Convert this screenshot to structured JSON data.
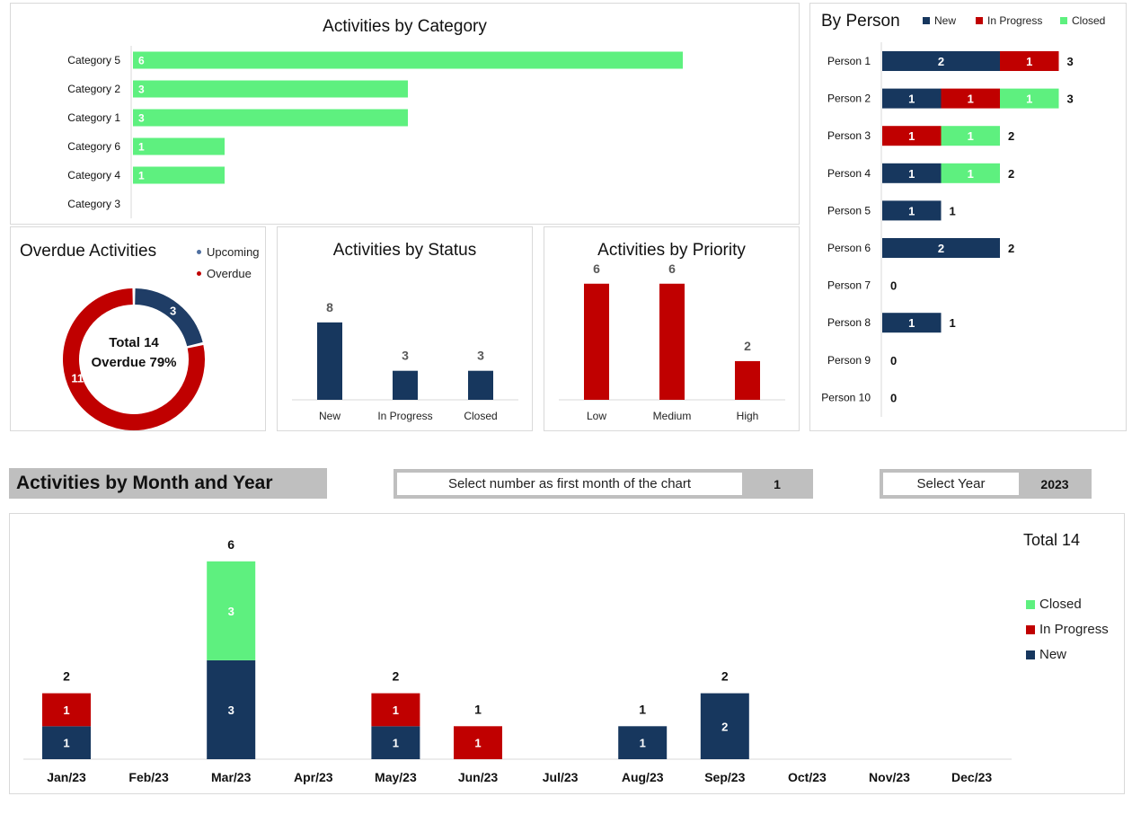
{
  "colors": {
    "new": "#17375e",
    "in_progress": "#c00000",
    "closed": "#5ef07f",
    "upcoming": "#1f3d66",
    "overdue": "#c00000"
  },
  "category_panel": {
    "title": "Activities by Category"
  },
  "overdue_panel": {
    "title": "Overdue Activities",
    "legend": [
      "Upcoming",
      "Overdue"
    ],
    "center_line1": "Total 14",
    "center_line2": "Overdue 79%"
  },
  "status_panel": {
    "title": "Activities by Status"
  },
  "priority_panel": {
    "title": "Activities by Priority"
  },
  "person_panel": {
    "title": "By Person",
    "legend": [
      "New",
      "In Progress",
      "Closed"
    ]
  },
  "month_section": {
    "title": "Activities by Month and Year",
    "first_month_label": "Select number as first month of the chart",
    "first_month_value": "1",
    "year_label": "Select Year",
    "year_value": "2023",
    "total_label": "Total 14",
    "legend": [
      "Closed",
      "In Progress",
      "New"
    ]
  },
  "chart_data": [
    {
      "type": "bar",
      "orientation": "horizontal",
      "title": "Activities by Category",
      "categories": [
        "Category 5",
        "Category 2",
        "Category 1",
        "Category 6",
        "Category 4",
        "Category 3"
      ],
      "values": [
        6,
        3,
        3,
        1,
        1,
        0
      ],
      "xlim": [
        0,
        7
      ]
    },
    {
      "type": "pie",
      "subtype": "donut",
      "title": "Overdue Activities",
      "labels": [
        "Upcoming",
        "Overdue"
      ],
      "values": [
        3,
        11
      ],
      "total": 14,
      "overdue_percent": 79
    },
    {
      "type": "bar",
      "title": "Activities by Status",
      "categories": [
        "New",
        "In Progress",
        "Closed"
      ],
      "values": [
        8,
        3,
        3
      ]
    },
    {
      "type": "bar",
      "title": "Activities by Priority",
      "categories": [
        "Low",
        "Medium",
        "High"
      ],
      "values": [
        6,
        6,
        2
      ]
    },
    {
      "type": "bar",
      "orientation": "horizontal",
      "stacked": true,
      "title": "By Person",
      "categories": [
        "Person 1",
        "Person 2",
        "Person 3",
        "Person 4",
        "Person 5",
        "Person 6",
        "Person 7",
        "Person 8",
        "Person 9",
        "Person 10"
      ],
      "series": [
        {
          "name": "New",
          "values": [
            2,
            1,
            0,
            1,
            1,
            2,
            0,
            1,
            0,
            0
          ]
        },
        {
          "name": "In Progress",
          "values": [
            1,
            1,
            1,
            0,
            0,
            0,
            0,
            0,
            0,
            0
          ]
        },
        {
          "name": "Closed",
          "values": [
            0,
            1,
            1,
            1,
            0,
            0,
            0,
            0,
            0,
            0
          ]
        }
      ],
      "totals": [
        3,
        3,
        2,
        2,
        1,
        2,
        0,
        1,
        0,
        0
      ]
    },
    {
      "type": "bar",
      "stacked": true,
      "title": "Activities by Month and Year",
      "categories": [
        "Jan/23",
        "Feb/23",
        "Mar/23",
        "Apr/23",
        "May/23",
        "Jun/23",
        "Jul/23",
        "Aug/23",
        "Sep/23",
        "Oct/23",
        "Nov/23",
        "Dec/23"
      ],
      "series": [
        {
          "name": "New",
          "values": [
            1,
            0,
            3,
            0,
            1,
            0,
            0,
            1,
            2,
            0,
            0,
            0
          ]
        },
        {
          "name": "In Progress",
          "values": [
            1,
            0,
            0,
            0,
            1,
            1,
            0,
            0,
            0,
            0,
            0,
            0
          ]
        },
        {
          "name": "Closed",
          "values": [
            0,
            0,
            3,
            0,
            0,
            0,
            0,
            0,
            0,
            0,
            0,
            0
          ]
        }
      ],
      "totals": [
        2,
        0,
        6,
        0,
        2,
        1,
        0,
        1,
        2,
        0,
        0,
        0
      ]
    }
  ]
}
